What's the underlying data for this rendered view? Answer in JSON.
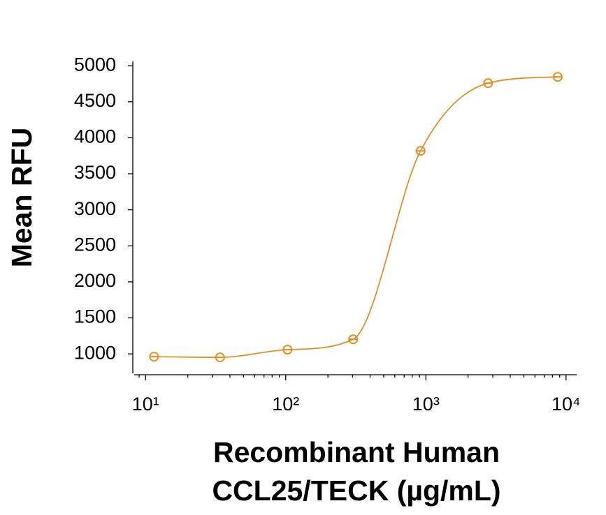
{
  "chart_data": {
    "type": "scatter",
    "x_label": [
      "Recombinant Human",
      "CCL25/TECK (µg/mL)"
    ],
    "y_label": "Mean RFU",
    "x": [
      11.5,
      34,
      103,
      303,
      917,
      2780,
      8720
    ],
    "series": [
      {
        "color": "#e39023",
        "values": [
          961,
          952,
          1058,
          1203,
          3818,
          4758,
          4845
        ]
      }
    ],
    "xscale": "log",
    "xlim": [
      8.3,
      11900
    ],
    "ylim": [
      730,
      5060
    ],
    "xticks": [
      {
        "value": 10,
        "label": "10¹"
      },
      {
        "value": 100,
        "label": "10²"
      },
      {
        "value": 1000,
        "label": "10³"
      },
      {
        "value": 10000,
        "label": "10⁴"
      }
    ],
    "yticks": [
      1000,
      1500,
      2000,
      2500,
      3000,
      3500,
      4000,
      4500,
      5000
    ]
  }
}
